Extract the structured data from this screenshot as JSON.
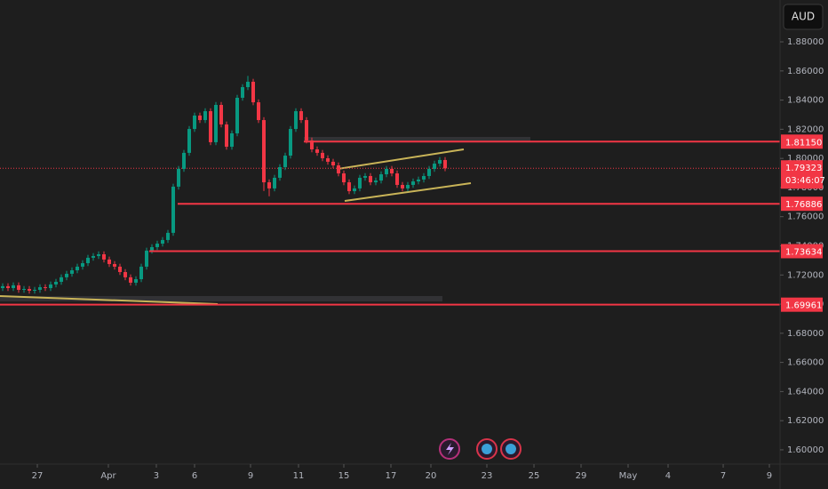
{
  "chart_data": {
    "type": "candlestick",
    "currency": "AUD",
    "up_color": "#089981",
    "down_color": "#f23645",
    "level_color": "#f23645",
    "candles": [
      [
        1.711,
        1.7143,
        1.709,
        1.7123
      ],
      [
        1.7123,
        1.7143,
        1.709,
        1.711
      ],
      [
        1.711,
        1.7149,
        1.709,
        1.7129
      ],
      [
        1.7129,
        1.7149,
        1.7078,
        1.7098
      ],
      [
        1.7098,
        1.7124,
        1.7078,
        1.7104
      ],
      [
        1.7104,
        1.7124,
        1.7072,
        1.7092
      ],
      [
        1.7092,
        1.7118,
        1.7072,
        1.7098
      ],
      [
        1.7098,
        1.7136,
        1.7078,
        1.7116
      ],
      [
        1.7116,
        1.7136,
        1.709,
        1.711
      ],
      [
        1.711,
        1.7155,
        1.709,
        1.7135
      ],
      [
        1.7135,
        1.7173,
        1.7115,
        1.7153
      ],
      [
        1.7153,
        1.7204,
        1.7133,
        1.7184
      ],
      [
        1.7184,
        1.7228,
        1.7164,
        1.7208
      ],
      [
        1.7208,
        1.7252,
        1.7188,
        1.7232
      ],
      [
        1.7232,
        1.7277,
        1.7212,
        1.7257
      ],
      [
        1.7257,
        1.7301,
        1.7237,
        1.7281
      ],
      [
        1.7281,
        1.7338,
        1.7261,
        1.7318
      ],
      [
        1.7318,
        1.735,
        1.7298,
        1.733
      ],
      [
        1.733,
        1.7362,
        1.731,
        1.7342
      ],
      [
        1.7342,
        1.7362,
        1.7286,
        1.7306
      ],
      [
        1.7306,
        1.7326,
        1.7255,
        1.7275
      ],
      [
        1.7275,
        1.7295,
        1.7237,
        1.7257
      ],
      [
        1.7257,
        1.7277,
        1.72,
        1.722
      ],
      [
        1.722,
        1.724,
        1.7164,
        1.7184
      ],
      [
        1.7184,
        1.7204,
        1.7127,
        1.7147
      ],
      [
        1.7147,
        1.7191,
        1.7127,
        1.7171
      ],
      [
        1.7171,
        1.7277,
        1.7151,
        1.7257
      ],
      [
        1.7257,
        1.7387,
        1.7237,
        1.7367
      ],
      [
        1.7367,
        1.7411,
        1.7347,
        1.7391
      ],
      [
        1.7391,
        1.7435,
        1.7371,
        1.7415
      ],
      [
        1.7415,
        1.746,
        1.7395,
        1.744
      ],
      [
        1.744,
        1.7509,
        1.742,
        1.7489
      ],
      [
        1.7489,
        1.7826,
        1.7469,
        1.7806
      ],
      [
        1.7806,
        1.7948,
        1.7786,
        1.7928
      ],
      [
        1.7928,
        1.8058,
        1.7908,
        1.8038
      ],
      [
        1.8038,
        1.8222,
        1.8018,
        1.8202
      ],
      [
        1.8202,
        1.8314,
        1.8182,
        1.8294
      ],
      [
        1.8294,
        1.8314,
        1.8243,
        1.8263
      ],
      [
        1.8263,
        1.8344,
        1.8243,
        1.8324
      ],
      [
        1.8324,
        1.8344,
        1.8091,
        1.8111
      ],
      [
        1.8111,
        1.8387,
        1.8091,
        1.8367
      ],
      [
        1.8367,
        1.8387,
        1.8213,
        1.8233
      ],
      [
        1.8233,
        1.8253,
        1.806,
        1.808
      ],
      [
        1.808,
        1.8192,
        1.806,
        1.8172
      ],
      [
        1.8172,
        1.8436,
        1.8152,
        1.8416
      ],
      [
        1.8416,
        1.8509,
        1.8396,
        1.8489
      ],
      [
        1.8489,
        1.8566,
        1.8469,
        1.8526
      ],
      [
        1.8526,
        1.8546,
        1.8365,
        1.8385
      ],
      [
        1.8385,
        1.8405,
        1.8243,
        1.8263
      ],
      [
        1.8263,
        1.8283,
        1.7776,
        1.7836
      ],
      [
        1.7836,
        1.7856,
        1.774,
        1.7794
      ],
      [
        1.7794,
        1.7887,
        1.7774,
        1.7867
      ],
      [
        1.7867,
        1.796,
        1.7847,
        1.794
      ],
      [
        1.794,
        1.8039,
        1.792,
        1.8019
      ],
      [
        1.8019,
        1.8222,
        1.7999,
        1.8202
      ],
      [
        1.8202,
        1.8344,
        1.8182,
        1.8324
      ],
      [
        1.8324,
        1.8344,
        1.8243,
        1.8263
      ],
      [
        1.8263,
        1.8283,
        1.8103,
        1.8123
      ],
      [
        1.8123,
        1.8143,
        1.8042,
        1.8062
      ],
      [
        1.8062,
        1.8082,
        1.8018,
        1.8038
      ],
      [
        1.8038,
        1.8058,
        1.7981,
        1.8001
      ],
      [
        1.8001,
        1.8021,
        1.7957,
        1.7977
      ],
      [
        1.7977,
        1.7997,
        1.7932,
        1.7952
      ],
      [
        1.7952,
        1.7972,
        1.7877,
        1.7897
      ],
      [
        1.7897,
        1.7917,
        1.7816,
        1.7836
      ],
      [
        1.7836,
        1.7856,
        1.7755,
        1.7775
      ],
      [
        1.7775,
        1.7814,
        1.7755,
        1.7794
      ],
      [
        1.7794,
        1.7887,
        1.7774,
        1.7867
      ],
      [
        1.7867,
        1.7899,
        1.7847,
        1.7879
      ],
      [
        1.7879,
        1.7899,
        1.7816,
        1.7836
      ],
      [
        1.7836,
        1.7868,
        1.7816,
        1.7848
      ],
      [
        1.7848,
        1.7911,
        1.7828,
        1.7891
      ],
      [
        1.7891,
        1.7948,
        1.7871,
        1.7928
      ],
      [
        1.7928,
        1.7948,
        1.7877,
        1.7897
      ],
      [
        1.7897,
        1.7917,
        1.7798,
        1.7818
      ],
      [
        1.7818,
        1.7838,
        1.7774,
        1.7794
      ],
      [
        1.7794,
        1.7838,
        1.7774,
        1.7818
      ],
      [
        1.7818,
        1.7862,
        1.7798,
        1.7842
      ],
      [
        1.7842,
        1.7875,
        1.7822,
        1.7855
      ],
      [
        1.7855,
        1.7899,
        1.7835,
        1.7879
      ],
      [
        1.7879,
        1.7948,
        1.7859,
        1.7928
      ],
      [
        1.7928,
        1.7984,
        1.7908,
        1.7964
      ],
      [
        1.7964,
        1.8009,
        1.7944,
        1.7989
      ],
      [
        1.7989,
        1.8009,
        1.7912,
        1.7932
      ]
    ],
    "ylim": [
      1.5902,
      1.9087
    ],
    "yticks": [
      {
        "value": 1.6,
        "label": "1.60000"
      },
      {
        "value": 1.62,
        "label": "1.62000"
      },
      {
        "value": 1.64,
        "label": "1.64000"
      },
      {
        "value": 1.66,
        "label": "1.66000"
      },
      {
        "value": 1.68,
        "label": "1.68000"
      },
      {
        "value": 1.7,
        "label": "1.70000"
      },
      {
        "value": 1.72,
        "label": "1.72000"
      },
      {
        "value": 1.74,
        "label": "1.74000"
      },
      {
        "value": 1.76,
        "label": "1.76000"
      },
      {
        "value": 1.78,
        "label": "1.78000"
      },
      {
        "value": 1.8,
        "label": "1.80000"
      },
      {
        "value": 1.82,
        "label": "1.82000"
      },
      {
        "value": 1.84,
        "label": "1.84000"
      },
      {
        "value": 1.86,
        "label": "1.86000"
      },
      {
        "value": 1.88,
        "label": "1.88000"
      }
    ],
    "xlim": [
      -0.5,
      145.83
    ],
    "xticks": [
      {
        "value": 6.5,
        "label": "27"
      },
      {
        "value": 19.83,
        "label": "Apr"
      },
      {
        "value": 28.83,
        "label": "3"
      },
      {
        "value": 36,
        "label": "6"
      },
      {
        "value": 46.5,
        "label": "9"
      },
      {
        "value": 55.5,
        "label": "11"
      },
      {
        "value": 64,
        "label": "15"
      },
      {
        "value": 72.83,
        "label": "17"
      },
      {
        "value": 80.33,
        "label": "20"
      },
      {
        "value": 90.83,
        "label": "23"
      },
      {
        "value": 99.67,
        "label": "25"
      },
      {
        "value": 108.5,
        "label": "29"
      },
      {
        "value": 117.33,
        "label": "May"
      },
      {
        "value": 124.83,
        "label": "4"
      },
      {
        "value": 135.17,
        "label": "7"
      },
      {
        "value": 143.83,
        "label": "9"
      }
    ],
    "levels": [
      {
        "value": 1.8115,
        "label": "1.81150"
      },
      1.76886,
      1.73634,
      1.69961
    ],
    "last_price": 1.79323,
    "countdown": "03:46:07"
  }
}
